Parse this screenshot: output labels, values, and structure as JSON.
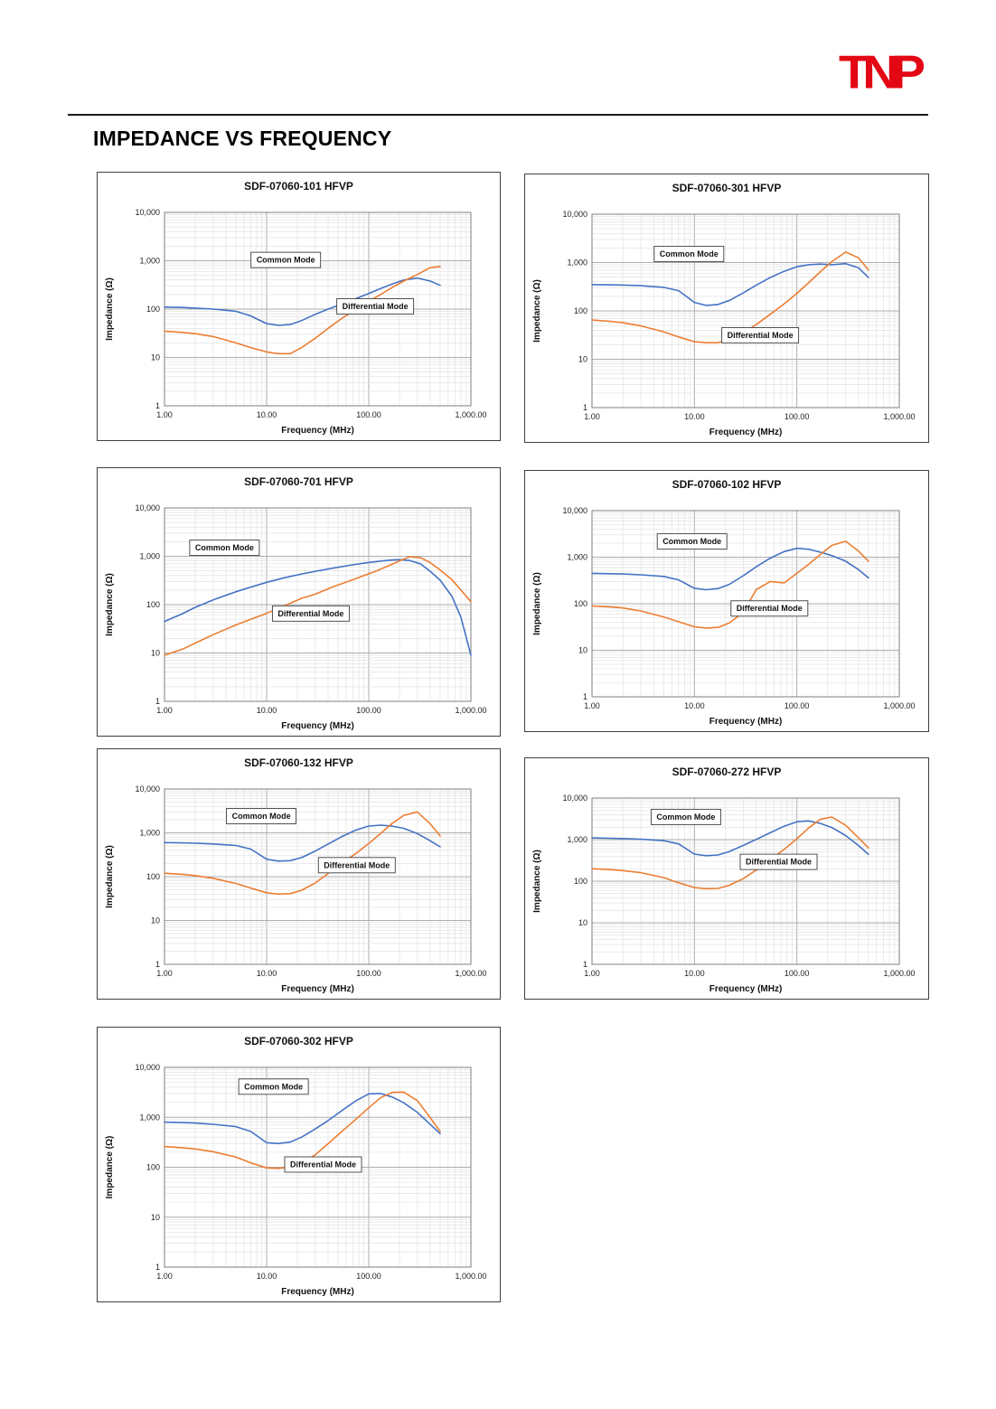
{
  "page": {
    "title": "IMPEDANCE VS FREQUENCY"
  },
  "logo": {
    "text": "TNP",
    "color": "#e30613"
  },
  "chart_axes": {
    "xlabel": "Frequency (MHz)",
    "ylabel": "Impedance (Ω)",
    "x_ticks": [
      "1.00",
      "10.00",
      "100.00",
      "1,000.00"
    ],
    "y_ticks": [
      "1",
      "10",
      "100",
      "1,000",
      "10,000"
    ],
    "xlim": [
      1,
      1000
    ],
    "ylim": [
      1,
      10000
    ],
    "x_scale": "log",
    "y_scale": "log",
    "grid": true,
    "legend_position": "inline-boxes",
    "series_colors": {
      "common_mode": "#4472c4",
      "differential_mode": "#ed7d31"
    },
    "series_labels": {
      "common_mode": "Common Mode",
      "differential_mode": "Differential Mode"
    }
  },
  "chart_data": [
    {
      "type": "line",
      "title": "SDF-07060-101 HFVP",
      "x": [
        1,
        1.5,
        2,
        3,
        5,
        7,
        10,
        13,
        17,
        22,
        30,
        40,
        55,
        75,
        100,
        130,
        170,
        220,
        300,
        400,
        500
      ],
      "series": [
        {
          "name": "Common Mode",
          "values": [
            110,
            108,
            105,
            100,
            90,
            72,
            50,
            46,
            48,
            58,
            78,
            100,
            128,
            165,
            210,
            265,
            330,
            400,
            440,
            380,
            310
          ]
        },
        {
          "name": "Differential Mode",
          "values": [
            35,
            33,
            31,
            27,
            20,
            16,
            13,
            12,
            12,
            16,
            25,
            40,
            65,
            100,
            145,
            200,
            280,
            380,
            520,
            720,
            760
          ]
        }
      ],
      "label_positions": {
        "common_mode": [
          0.3,
          0.26
        ],
        "differential_mode": [
          0.58,
          0.5
        ]
      }
    },
    {
      "type": "line",
      "title": "SDF-07060-301 HFVP",
      "x": [
        1,
        1.5,
        2,
        3,
        5,
        7,
        10,
        13,
        17,
        22,
        30,
        40,
        55,
        75,
        100,
        130,
        170,
        220,
        300,
        400,
        500
      ],
      "series": [
        {
          "name": "Common Mode",
          "values": [
            350,
            346,
            342,
            332,
            308,
            262,
            150,
            130,
            136,
            165,
            235,
            340,
            490,
            660,
            820,
            900,
            930,
            900,
            950,
            780,
            490
          ]
        },
        {
          "name": "Differential Mode",
          "values": [
            65,
            61,
            57,
            49,
            37,
            29,
            23,
            22,
            22,
            26,
            35,
            52,
            85,
            140,
            230,
            380,
            650,
            1050,
            1650,
            1250,
            700
          ]
        }
      ],
      "label_positions": {
        "common_mode": [
          0.22,
          0.22
        ],
        "differential_mode": [
          0.44,
          0.64
        ]
      }
    },
    {
      "type": "line",
      "title": "SDF-07060-701 HFVP",
      "x": [
        1,
        1.5,
        2,
        3,
        5,
        7,
        10,
        15,
        22,
        30,
        45,
        65,
        90,
        120,
        160,
        200,
        250,
        320,
        400,
        500,
        650,
        800,
        1000
      ],
      "series": [
        {
          "name": "Common Mode",
          "values": [
            45,
            65,
            88,
            125,
            185,
            230,
            290,
            360,
            430,
            490,
            570,
            650,
            720,
            780,
            830,
            850,
            820,
            700,
            490,
            320,
            150,
            55,
            9
          ]
        },
        {
          "name": "Differential Mode",
          "values": [
            9,
            12,
            16,
            24,
            38,
            50,
            66,
            95,
            135,
            165,
            235,
            310,
            400,
            500,
            650,
            800,
            980,
            940,
            740,
            520,
            330,
            200,
            115
          ]
        }
      ],
      "label_positions": {
        "common_mode": [
          0.1,
          0.22
        ],
        "differential_mode": [
          0.37,
          0.56
        ]
      }
    },
    {
      "type": "line",
      "title": "SDF-07060-102 HFVP",
      "x": [
        1,
        1.5,
        2,
        3,
        5,
        7,
        10,
        13,
        17,
        22,
        30,
        40,
        55,
        75,
        100,
        130,
        170,
        220,
        300,
        400,
        500
      ],
      "series": [
        {
          "name": "Common Mode",
          "values": [
            450,
            442,
            435,
            418,
            385,
            325,
            215,
            200,
            212,
            262,
            400,
            620,
            950,
            1320,
            1550,
            1480,
            1280,
            1080,
            820,
            540,
            360
          ]
        },
        {
          "name": "Differential Mode",
          "values": [
            90,
            86,
            81,
            70,
            52,
            41,
            32,
            30,
            31,
            39,
            65,
            200,
            300,
            280,
            450,
            700,
            1150,
            1800,
            2200,
            1350,
            820
          ]
        }
      ],
      "label_positions": {
        "common_mode": [
          0.23,
          0.18
        ],
        "differential_mode": [
          0.47,
          0.54
        ]
      }
    },
    {
      "type": "line",
      "title": "SDF-07060-132 HFVP",
      "x": [
        1,
        1.5,
        2,
        3,
        5,
        7,
        10,
        13,
        17,
        22,
        30,
        40,
        55,
        75,
        100,
        130,
        170,
        220,
        300,
        400,
        500
      ],
      "series": [
        {
          "name": "Common Mode",
          "values": [
            600,
            590,
            580,
            558,
            515,
            425,
            250,
            226,
            232,
            272,
            385,
            555,
            830,
            1160,
            1430,
            1500,
            1420,
            1270,
            960,
            660,
            480
          ]
        },
        {
          "name": "Differential Mode",
          "values": [
            120,
            113,
            106,
            92,
            70,
            55,
            43,
            40,
            41,
            49,
            72,
            118,
            205,
            340,
            570,
            960,
            1650,
            2500,
            3000,
            1600,
            850
          ]
        }
      ],
      "label_positions": {
        "common_mode": [
          0.22,
          0.17
        ],
        "differential_mode": [
          0.52,
          0.45
        ]
      }
    },
    {
      "type": "line",
      "title": "SDF-07060-272 HFVP",
      "x": [
        1,
        1.5,
        2,
        3,
        5,
        7,
        10,
        13,
        17,
        22,
        30,
        40,
        55,
        75,
        100,
        130,
        170,
        220,
        300,
        400,
        500
      ],
      "series": [
        {
          "name": "Common Mode",
          "values": [
            1100,
            1080,
            1060,
            1020,
            945,
            790,
            450,
            410,
            428,
            520,
            725,
            1010,
            1460,
            2100,
            2700,
            2820,
            2450,
            1950,
            1250,
            720,
            440
          ]
        },
        {
          "name": "Differential Mode",
          "values": [
            200,
            190,
            180,
            160,
            122,
            92,
            70,
            66,
            67,
            80,
            115,
            185,
            330,
            580,
            1050,
            1900,
            3100,
            3500,
            2200,
            1100,
            630
          ]
        }
      ],
      "label_positions": {
        "common_mode": [
          0.21,
          0.13
        ],
        "differential_mode": [
          0.5,
          0.4
        ]
      }
    },
    {
      "type": "line",
      "title": "SDF-07060-302 HFVP",
      "x": [
        1,
        1.5,
        2,
        3,
        5,
        7,
        10,
        13,
        17,
        22,
        30,
        40,
        55,
        75,
        100,
        130,
        170,
        220,
        300,
        400,
        500
      ],
      "series": [
        {
          "name": "Common Mode",
          "values": [
            800,
            785,
            768,
            725,
            650,
            520,
            310,
            298,
            318,
            400,
            585,
            860,
            1380,
            2150,
            2950,
            3000,
            2550,
            1950,
            1250,
            720,
            470
          ]
        },
        {
          "name": "Differential Mode",
          "values": [
            260,
            246,
            232,
            205,
            160,
            122,
            97,
            95,
            101,
            122,
            178,
            295,
            530,
            920,
            1550,
            2450,
            3150,
            3200,
            2150,
            980,
            520
          ]
        }
      ],
      "label_positions": {
        "common_mode": [
          0.26,
          0.11
        ],
        "differential_mode": [
          0.41,
          0.5
        ]
      }
    }
  ]
}
